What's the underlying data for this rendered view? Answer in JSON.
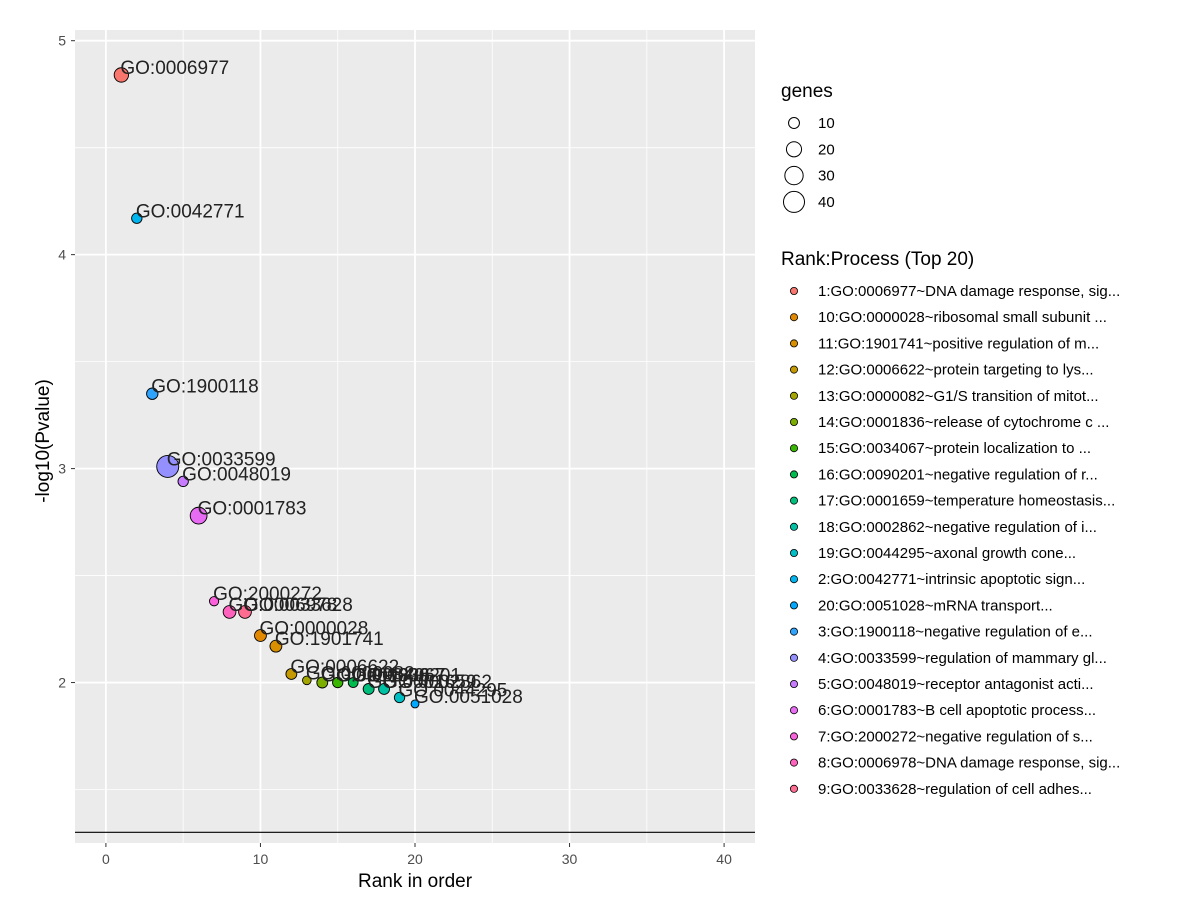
{
  "chart_data": {
    "type": "scatter",
    "title": "",
    "xlabel": "Rank in order",
    "ylabel": "-log10(Pvalue)",
    "xlim": [
      -2,
      42
    ],
    "ylim": [
      1.25,
      5.05
    ],
    "x_ticks": [
      0,
      10,
      20,
      30,
      40
    ],
    "y_ticks": [
      2,
      3,
      4,
      5
    ],
    "reference_line_y": 1.3,
    "points": [
      {
        "rank": 1,
        "y": 4.84,
        "genes": 18,
        "label": "GO:0006977",
        "color": "#F8766D"
      },
      {
        "rank": 2,
        "y": 4.17,
        "genes": 9,
        "label": "GO:0042771",
        "color": "#00B4EF"
      },
      {
        "rank": 3,
        "y": 3.35,
        "genes": 11,
        "label": "GO:1900118",
        "color": "#2FA4FF"
      },
      {
        "rank": 4,
        "y": 3.01,
        "genes": 44,
        "label": "GO:0033599",
        "color": "#9590FF"
      },
      {
        "rank": 5,
        "y": 2.94,
        "genes": 9,
        "label": "GO:0048019",
        "color": "#C77CFF"
      },
      {
        "rank": 6,
        "y": 2.78,
        "genes": 25,
        "label": "GO:0001783",
        "color": "#E76BF3"
      },
      {
        "rank": 7,
        "y": 2.38,
        "genes": 7,
        "label": "GO:2000272",
        "color": "#FA62DB"
      },
      {
        "rank": 8,
        "y": 2.33,
        "genes": 14,
        "label": "GO:0006978",
        "color": "#FF62BC"
      },
      {
        "rank": 9,
        "y": 2.33,
        "genes": 14,
        "label": "GO:0033628",
        "color": "#FF6C91"
      },
      {
        "rank": 10,
        "y": 2.22,
        "genes": 12,
        "label": "GO:0000028",
        "color": "#E38900"
      },
      {
        "rank": 11,
        "y": 2.17,
        "genes": 12,
        "label": "GO:1901741",
        "color": "#D89000"
      },
      {
        "rank": 12,
        "y": 2.04,
        "genes": 10,
        "label": "GO:0006622",
        "color": "#C49A00"
      },
      {
        "rank": 13,
        "y": 2.01,
        "genes": 6,
        "label": "GO:0000082",
        "color": "#A3A500"
      },
      {
        "rank": 14,
        "y": 2.0,
        "genes": 10,
        "label": "GO:0001836",
        "color": "#7CAE00"
      },
      {
        "rank": 15,
        "y": 2.0,
        "genes": 9,
        "label": "GO:0034067",
        "color": "#39B600"
      },
      {
        "rank": 16,
        "y": 2.0,
        "genes": 8,
        "label": "GO:0090201",
        "color": "#00BB4E"
      },
      {
        "rank": 17,
        "y": 1.97,
        "genes": 10,
        "label": "GO:0001659",
        "color": "#00BF7D"
      },
      {
        "rank": 18,
        "y": 1.97,
        "genes": 10,
        "label": "GO:0002862",
        "color": "#00C1A3"
      },
      {
        "rank": 19,
        "y": 1.93,
        "genes": 9,
        "label": "GO:0044295",
        "color": "#00BFC4"
      },
      {
        "rank": 20,
        "y": 1.9,
        "genes": 5,
        "label": "GO:0051028",
        "color": "#00A9FF"
      }
    ],
    "legend_size": {
      "title": "genes",
      "entries": [
        {
          "label": "10",
          "genes": 10
        },
        {
          "label": "20",
          "genes": 20
        },
        {
          "label": "30",
          "genes": 30
        },
        {
          "label": "40",
          "genes": 40
        }
      ]
    },
    "legend_color": {
      "title": "Rank:Process (Top 20)",
      "entries": [
        {
          "label": "1:GO:0006977~DNA damage response, sig...",
          "color": "#F8766D"
        },
        {
          "label": "10:GO:0000028~ribosomal small subunit ...",
          "color": "#E38900"
        },
        {
          "label": "11:GO:1901741~positive regulation of m...",
          "color": "#D89000"
        },
        {
          "label": "12:GO:0006622~protein targeting to lys...",
          "color": "#C49A00"
        },
        {
          "label": "13:GO:0000082~G1/S transition of mitot...",
          "color": "#A3A500"
        },
        {
          "label": "14:GO:0001836~release of cytochrome c ...",
          "color": "#7CAE00"
        },
        {
          "label": "15:GO:0034067~protein localization to ...",
          "color": "#39B600"
        },
        {
          "label": "16:GO:0090201~negative regulation of r...",
          "color": "#00BB4E"
        },
        {
          "label": "17:GO:0001659~temperature homeostasis...",
          "color": "#00BF7D"
        },
        {
          "label": "18:GO:0002862~negative regulation of i...",
          "color": "#00C1A3"
        },
        {
          "label": "19:GO:0044295~axonal growth cone...",
          "color": "#00BFC4"
        },
        {
          "label": "2:GO:0042771~intrinsic apoptotic sign...",
          "color": "#00B4EF"
        },
        {
          "label": "20:GO:0051028~mRNA transport...",
          "color": "#00A9FF"
        },
        {
          "label": "3:GO:1900118~negative regulation of e...",
          "color": "#2FA4FF"
        },
        {
          "label": "4:GO:0033599~regulation of mammary gl...",
          "color": "#9590FF"
        },
        {
          "label": "5:GO:0048019~receptor antagonist acti...",
          "color": "#C77CFF"
        },
        {
          "label": "6:GO:0001783~B cell apoptotic process...",
          "color": "#E76BF3"
        },
        {
          "label": "7:GO:2000272~negative regulation of s...",
          "color": "#FA62DB"
        },
        {
          "label": "8:GO:0006978~DNA damage response, sig...",
          "color": "#FF62BC"
        },
        {
          "label": "9:GO:0033628~regulation of cell adhes...",
          "color": "#FF6C91"
        }
      ]
    }
  }
}
